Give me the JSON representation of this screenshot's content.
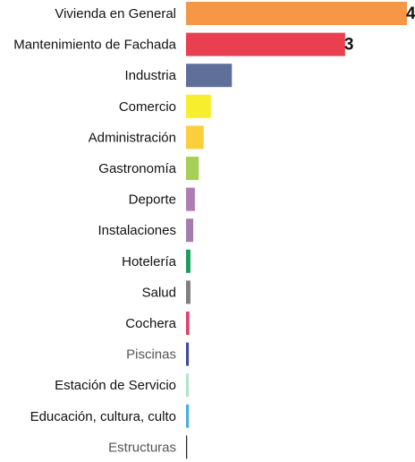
{
  "chart_data": {
    "type": "barh",
    "categories": [
      "Vivienda en General",
      "Mantenimiento de Fachada",
      "Industria",
      "Comercio",
      "Administración",
      "Gastronomía",
      "Deporte",
      "Instalaciones",
      "Hotelería",
      "Salud",
      "Cochera",
      "Piscinas",
      "Estación de Servicio",
      "Educación, cultura, culto",
      "Estructuras"
    ],
    "values": [
      4.0,
      2.88,
      0.83,
      0.45,
      0.32,
      0.23,
      0.16,
      0.13,
      0.08,
      0.08,
      0.06,
      0.05,
      0.05,
      0.05,
      0.02
    ],
    "value_labels": [
      "4",
      "3",
      null,
      null,
      null,
      null,
      null,
      null,
      null,
      null,
      null,
      null,
      null,
      null,
      null
    ],
    "colors": [
      "#f79646",
      "#e8404f",
      "#5f6f9a",
      "#f7ef2e",
      "#fbcf3c",
      "#a6cf57",
      "#b07cb5",
      "#a57cb0",
      "#1a9e5c",
      "#7f7f7f",
      "#e0406a",
      "#3f4a9a",
      "#b5e3c8",
      "#3fb0e0",
      "#222222"
    ],
    "label_colors": [
      "#111111",
      "#111111",
      "#111111",
      "#111111",
      "#111111",
      "#111111",
      "#111111",
      "#111111",
      "#111111",
      "#111111",
      "#111111",
      "#555555",
      "#111111",
      "#111111",
      "#555555"
    ]
  }
}
